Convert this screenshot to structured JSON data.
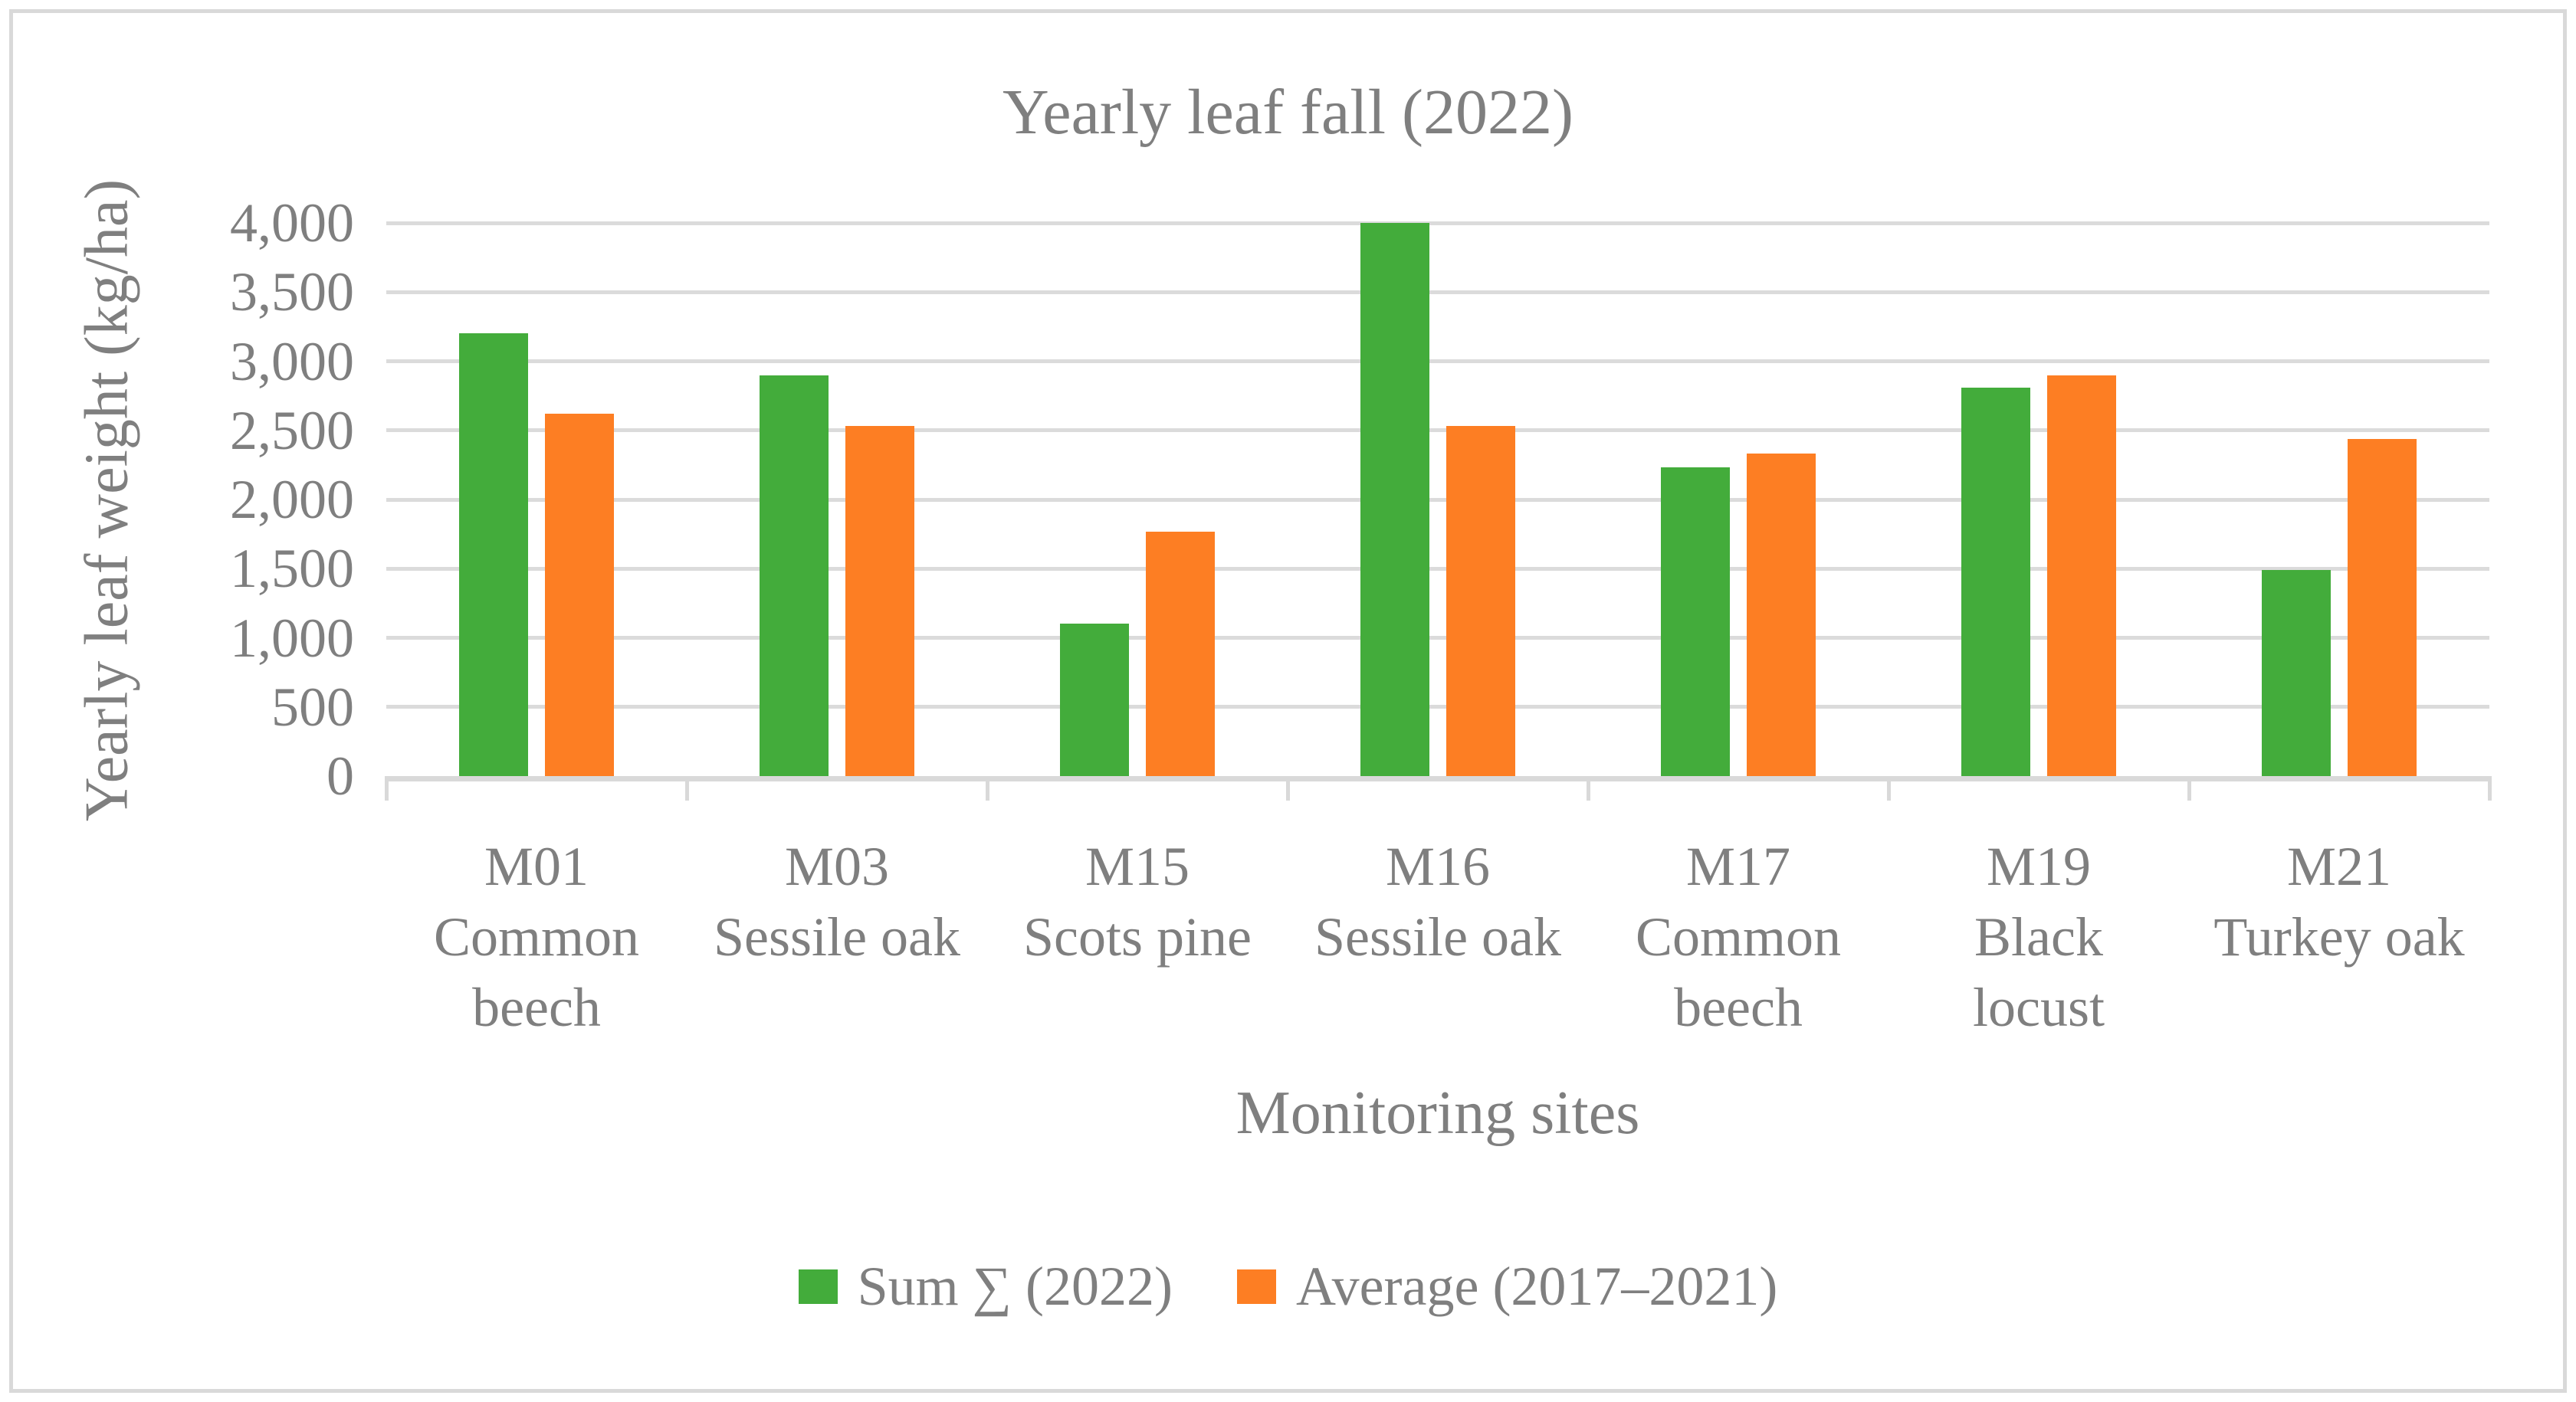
{
  "chart_data": {
    "type": "bar",
    "title": "Yearly leaf fall (2022)",
    "xlabel": "Monitoring sites",
    "ylabel": "Yearly leaf weight (kg/ha)",
    "ylim": [
      0,
      4000
    ],
    "ytick_step": 500,
    "ytick_labels": [
      "0",
      "500",
      "1,000",
      "1,500",
      "2,000",
      "2,500",
      "3,000",
      "3,500",
      "4,000"
    ],
    "grid": true,
    "legend_position": "bottom",
    "categories": [
      {
        "site": "M01",
        "species_lines": [
          "Common",
          "beech"
        ]
      },
      {
        "site": "M03",
        "species_lines": [
          "Sessile oak"
        ]
      },
      {
        "site": "M15",
        "species_lines": [
          "Scots pine"
        ]
      },
      {
        "site": "M16",
        "species_lines": [
          "Sessile oak"
        ]
      },
      {
        "site": "M17",
        "species_lines": [
          "Common",
          "beech"
        ]
      },
      {
        "site": "M19",
        "species_lines": [
          "Black",
          "locust"
        ]
      },
      {
        "site": "M21",
        "species_lines": [
          "Turkey oak"
        ]
      }
    ],
    "series": [
      {
        "name": "Sum ∑ (2022)",
        "color": "#43AC3B",
        "values": [
          3200,
          2900,
          1100,
          4000,
          2230,
          2810,
          1490
        ]
      },
      {
        "name": "Average (2017–2021)",
        "color": "#FD7E23",
        "values": [
          2620,
          2530,
          1770,
          2530,
          2330,
          2900,
          2440
        ]
      }
    ],
    "colors": {
      "grid": "#DBDBDB",
      "axis": "#D9D9D9",
      "border": "#D9D9D9",
      "text": "#7F7F7F",
      "series_green": "#43AC3B",
      "series_orange": "#FD7E23"
    }
  }
}
